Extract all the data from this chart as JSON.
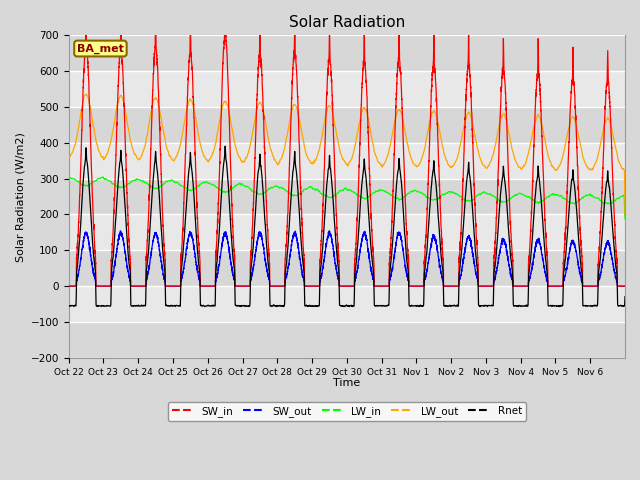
{
  "title": "Solar Radiation",
  "ylabel": "Solar Radiation (W/m2)",
  "xlabel": "Time",
  "ylim": [
    -200,
    700
  ],
  "site_label": "BA_met",
  "xtick_labels": [
    "Oct 22",
    "Oct 23",
    "Oct 24",
    "Oct 25",
    "Oct 26",
    "Oct 27",
    "Oct 28",
    "Oct 29",
    "Oct 30",
    "Oct 31",
    "Nov 1",
    "Nov 2",
    "Nov 3",
    "Nov 4",
    "Nov 5",
    "Nov 6"
  ],
  "colors": {
    "SW_in": "#FF0000",
    "SW_out": "#0000FF",
    "LW_in": "#00FF00",
    "LW_out": "#FFA500",
    "Rnet": "#000000"
  },
  "fig_bg": "#D8D8D8",
  "plot_bg": "#E8E8E8",
  "grid_color": "#FFFFFF",
  "n_days": 16,
  "pts_per_day": 288,
  "SW_in_peaks": [
    675,
    660,
    667,
    650,
    700,
    648,
    655,
    638,
    628,
    633,
    622,
    618,
    605,
    600,
    580,
    575
  ],
  "SW_out_peaks": [
    148,
    148,
    148,
    148,
    148,
    148,
    148,
    148,
    148,
    148,
    138,
    138,
    130,
    128,
    125,
    122
  ],
  "LW_in_base": [
    305,
    300,
    298,
    293,
    288,
    282,
    278,
    273,
    270,
    268,
    265,
    263,
    260,
    258,
    256,
    254
  ],
  "LW_out_base": [
    350,
    348,
    345,
    342,
    340,
    338,
    335,
    333,
    330,
    328,
    326,
    324,
    322,
    320,
    318,
    316
  ],
  "LW_out_peak_add": [
    155,
    152,
    150,
    148,
    146,
    144,
    142,
    140,
    138,
    135,
    132,
    130,
    128,
    126,
    124,
    122
  ],
  "Rnet_peaks": [
    355,
    350,
    348,
    342,
    360,
    340,
    345,
    335,
    328,
    330,
    322,
    318,
    310,
    308,
    300,
    295
  ],
  "Rnet_night": -55
}
